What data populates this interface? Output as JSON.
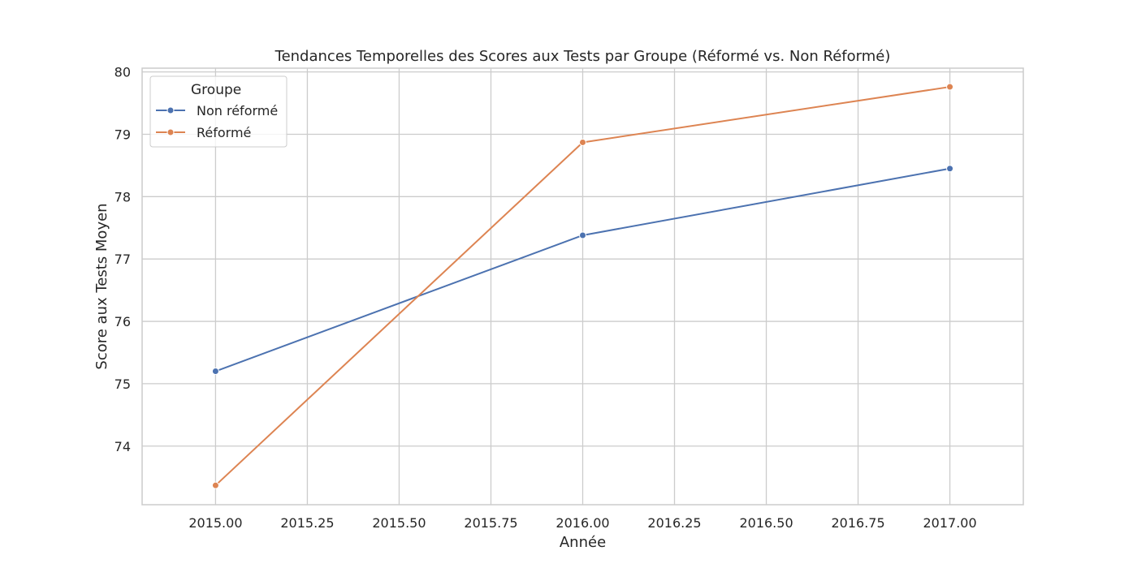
{
  "chart_data": {
    "type": "line",
    "title": "Tendances Temporelles des Scores aux Tests par Groupe (Réformé vs. Non Réformé)",
    "xlabel": "Année",
    "ylabel": "Score aux Tests Moyen",
    "xlim": [
      2014.8,
      2017.2
    ],
    "ylim": [
      73.06,
      80.06
    ],
    "x_ticks": [
      2015.0,
      2015.25,
      2015.5,
      2015.75,
      2016.0,
      2016.25,
      2016.5,
      2016.75,
      2017.0
    ],
    "x_tick_labels": [
      "2015.00",
      "2015.25",
      "2015.50",
      "2015.75",
      "2016.00",
      "2016.25",
      "2016.50",
      "2016.75",
      "2017.00"
    ],
    "y_ticks": [
      74,
      75,
      76,
      77,
      78,
      79,
      80
    ],
    "y_tick_labels": [
      "74",
      "75",
      "76",
      "77",
      "78",
      "79",
      "80"
    ],
    "grid": true,
    "legend_placement": "top-left",
    "legend_title": "Groupe",
    "series": [
      {
        "name": "Non réformé",
        "color": "#4c72b0",
        "x": [
          2015,
          2016,
          2017
        ],
        "y": [
          75.2,
          77.38,
          78.45
        ]
      },
      {
        "name": "Réformé",
        "color": "#dd8452",
        "x": [
          2015,
          2016,
          2017
        ],
        "y": [
          73.37,
          78.87,
          79.76
        ]
      }
    ]
  }
}
